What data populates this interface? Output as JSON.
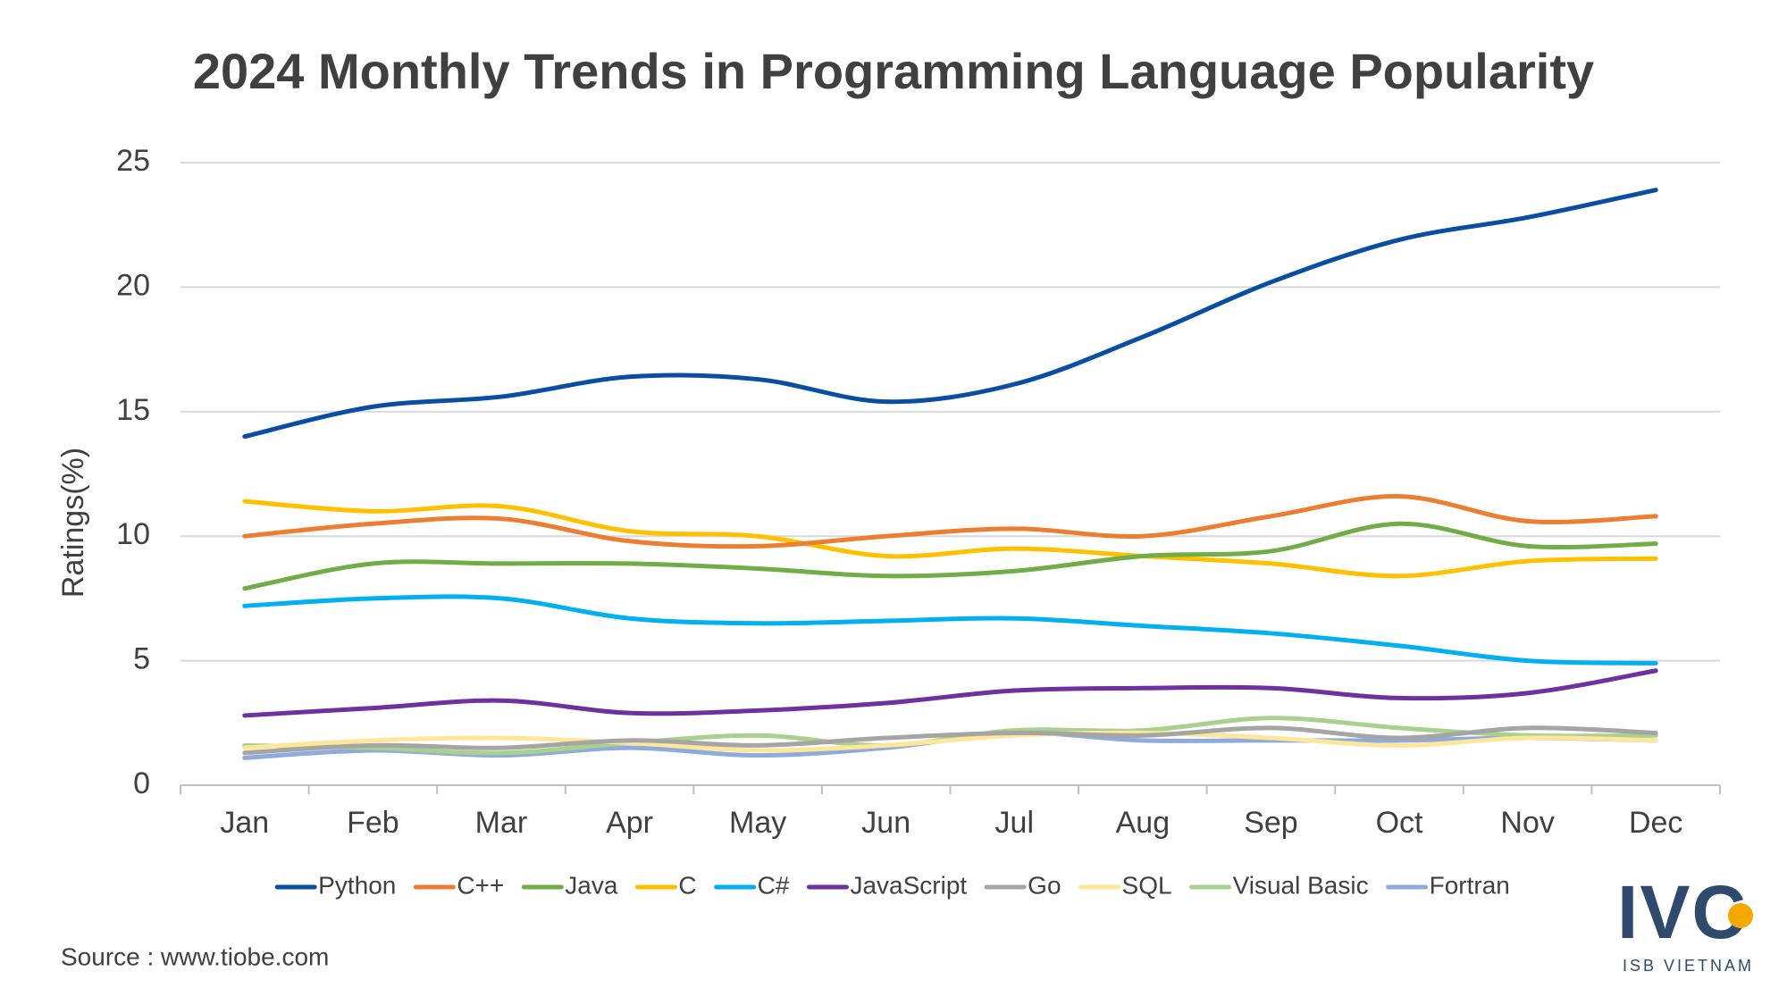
{
  "chart_data": {
    "type": "line",
    "title": "2024 Monthly Trends in Programming Language Popularity",
    "y_label": "Ratings(%)",
    "source": "Source : www.tiobe.com",
    "categories": [
      "Jan",
      "Feb",
      "Mar",
      "Apr",
      "May",
      "Jun",
      "Jul",
      "Aug",
      "Sep",
      "Oct",
      "Nov",
      "Dec"
    ],
    "ylim": [
      0,
      25
    ],
    "yticks": [
      0,
      5,
      10,
      15,
      20,
      25
    ],
    "grid": true,
    "smooth": true,
    "legend": "bottom",
    "series": [
      {
        "name": "Python",
        "color": "#0a4ea3",
        "values": [
          14.0,
          15.2,
          15.6,
          16.4,
          16.3,
          15.4,
          16.1,
          18.0,
          20.2,
          21.9,
          22.8,
          23.9
        ]
      },
      {
        "name": "C++",
        "color": "#ed7d31",
        "values": [
          10.0,
          10.5,
          10.7,
          9.8,
          9.6,
          10.0,
          10.3,
          10.0,
          10.8,
          11.6,
          10.6,
          10.8
        ]
      },
      {
        "name": "Java",
        "color": "#70ad47",
        "values": [
          7.9,
          8.9,
          8.9,
          8.9,
          8.7,
          8.4,
          8.6,
          9.2,
          9.4,
          10.5,
          9.6,
          9.7
        ]
      },
      {
        "name": "C",
        "color": "#ffc000",
        "values": [
          11.4,
          11.0,
          11.2,
          10.2,
          10.0,
          9.2,
          9.5,
          9.2,
          8.9,
          8.4,
          9.0,
          9.1
        ]
      },
      {
        "name": "C#",
        "color": "#00b0f0",
        "values": [
          7.2,
          7.5,
          7.5,
          6.7,
          6.5,
          6.6,
          6.7,
          6.4,
          6.1,
          5.6,
          5.0,
          4.9
        ]
      },
      {
        "name": "JavaScript",
        "color": "#7030a0",
        "values": [
          2.8,
          3.1,
          3.4,
          2.9,
          3.0,
          3.3,
          3.8,
          3.9,
          3.9,
          3.5,
          3.7,
          4.6
        ]
      },
      {
        "name": "Go",
        "color": "#a5a5a5",
        "values": [
          1.3,
          1.6,
          1.5,
          1.8,
          1.6,
          1.9,
          2.1,
          2.0,
          2.3,
          1.9,
          2.3,
          2.1
        ]
      },
      {
        "name": "SQL",
        "color": "#ffe699",
        "values": [
          1.5,
          1.8,
          1.9,
          1.7,
          1.4,
          1.6,
          2.0,
          2.1,
          1.9,
          1.6,
          1.9,
          1.8
        ]
      },
      {
        "name": "Visual Basic",
        "color": "#a9d18e",
        "values": [
          1.6,
          1.5,
          1.3,
          1.7,
          2.0,
          1.6,
          2.2,
          2.2,
          2.7,
          2.3,
          2.0,
          2.0
        ]
      },
      {
        "name": "Fortran",
        "color": "#8faadc",
        "values": [
          1.1,
          1.4,
          1.2,
          1.5,
          1.2,
          1.5,
          2.1,
          1.8,
          1.8,
          1.8,
          1.9,
          1.8
        ]
      }
    ]
  },
  "logo": {
    "text": "IVC",
    "subtitle": "ISB VIETNAM"
  }
}
